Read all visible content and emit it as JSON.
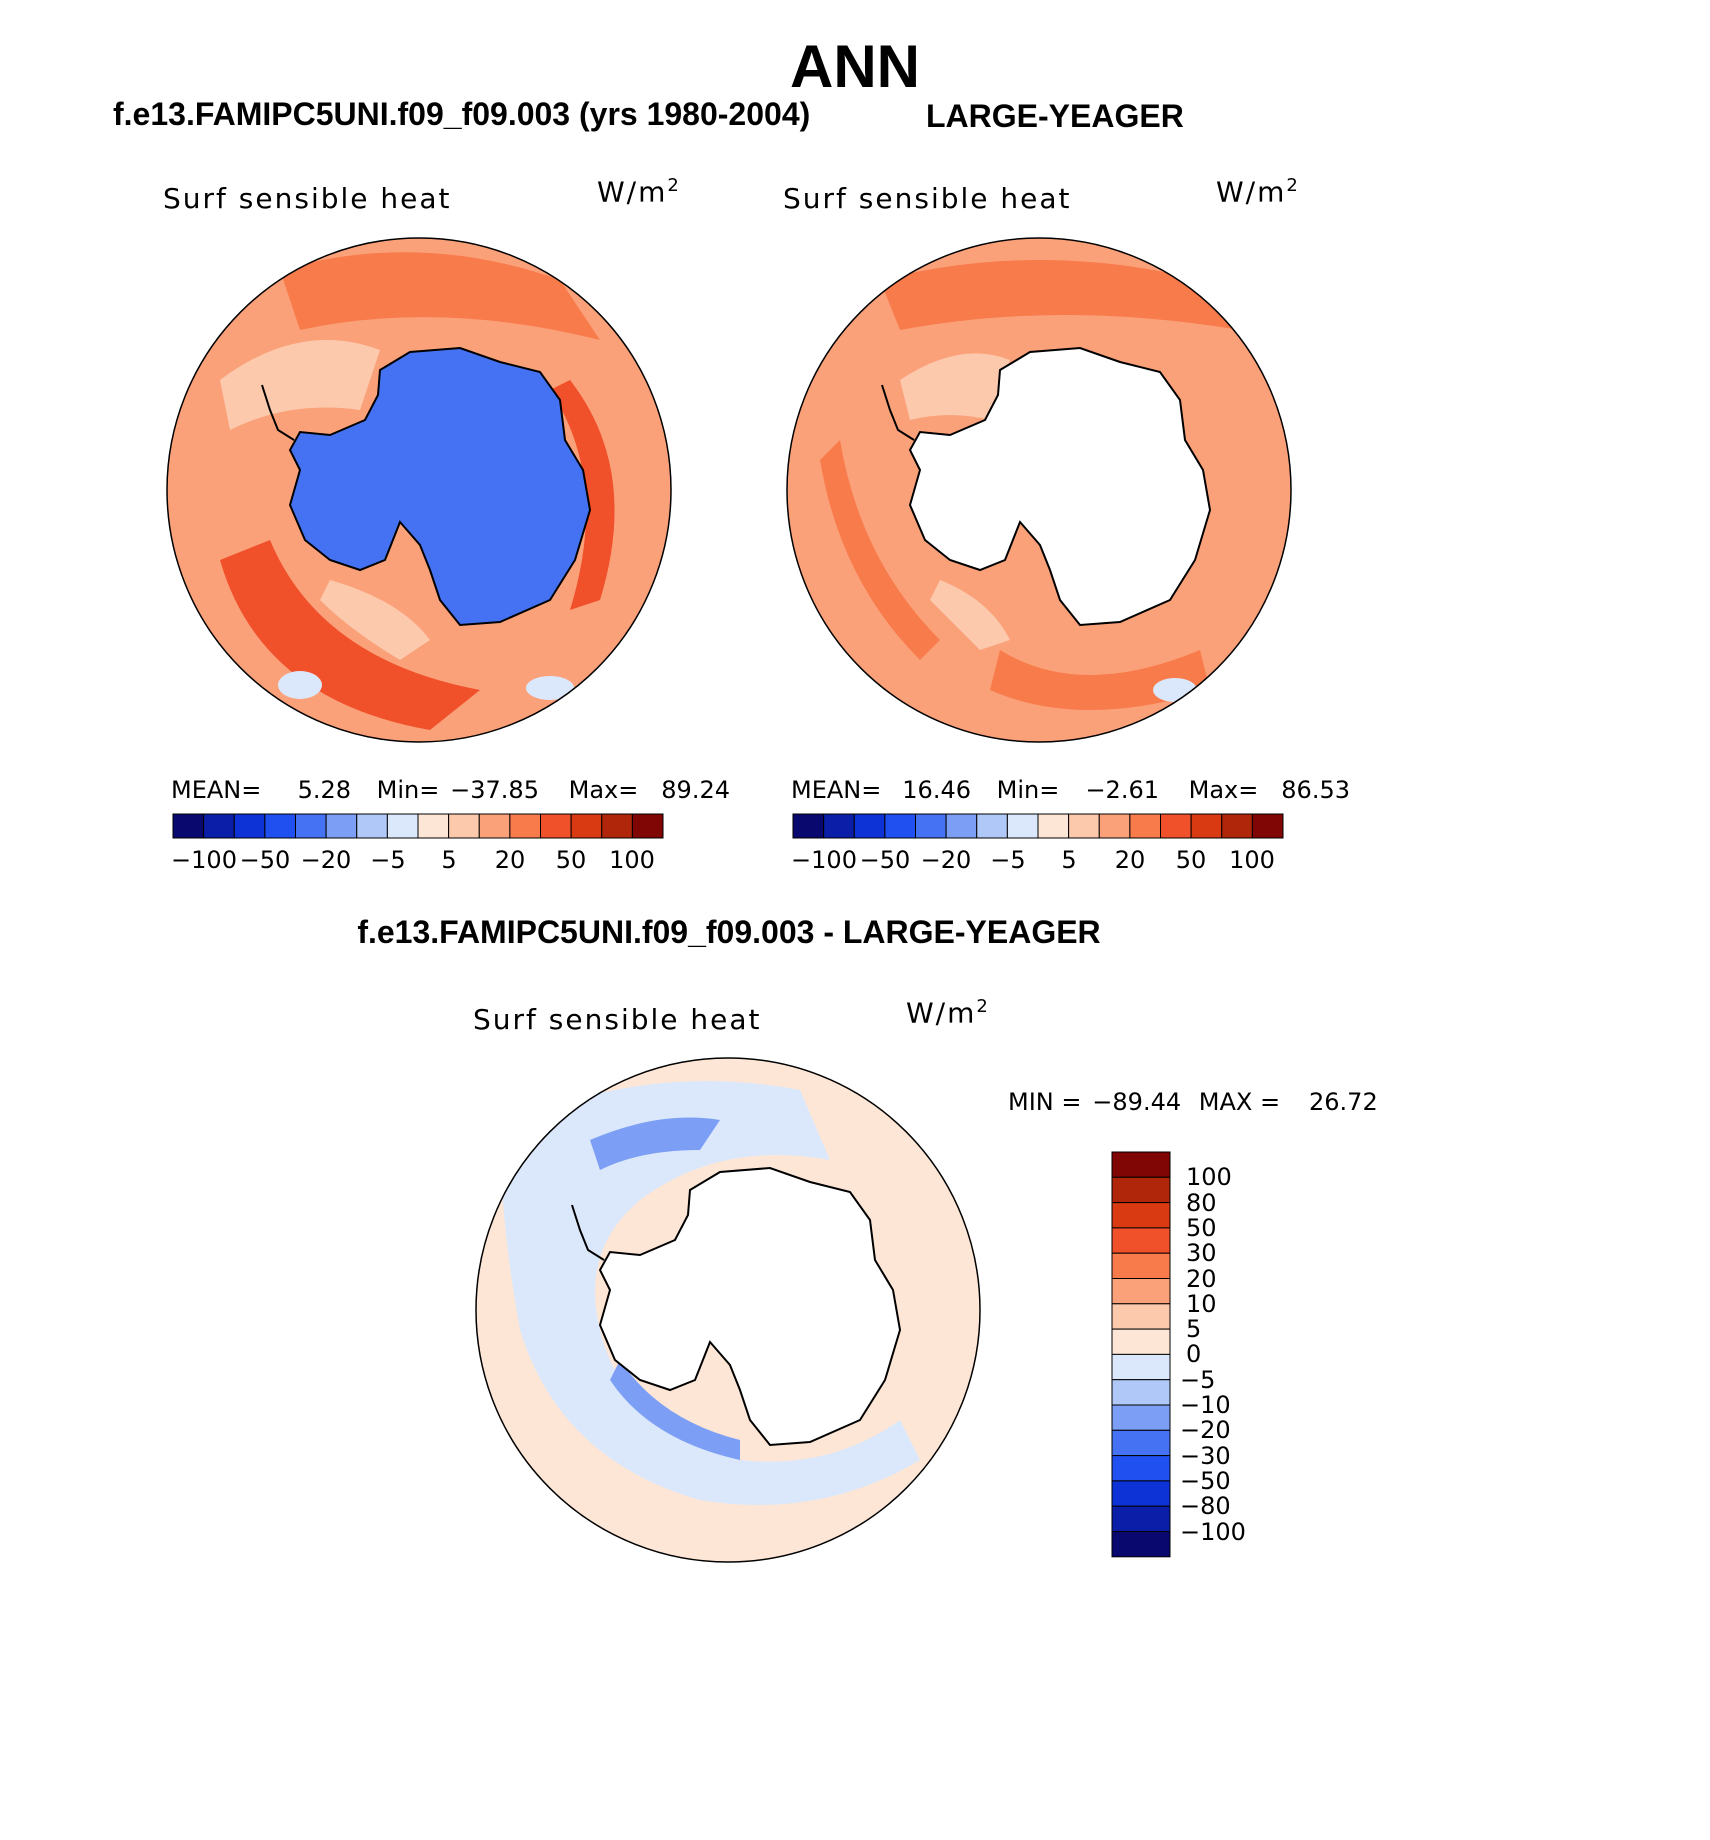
{
  "title": "ANN",
  "panels": [
    {
      "case_title": "f.e13.FAMIPC5UNI.f09_f09.003 (yrs 1980-2004)",
      "variable": "Surf sensible heat",
      "units": "W/m",
      "units_sup": "2",
      "stats": {
        "mean_label": "MEAN=",
        "mean": "5.28",
        "min_label": "Min=",
        "min": "−37.85",
        "max_label": "Max=",
        "max": "89.24"
      },
      "colorbar_labels": [
        "−100",
        "−50",
        "−20",
        "−5",
        "5",
        "20",
        "50",
        "100"
      ]
    },
    {
      "case_title": "LARGE-YEAGER",
      "variable": "Surf sensible heat",
      "units": "W/m",
      "units_sup": "2",
      "stats": {
        "mean_label": "MEAN=",
        "mean": "16.46",
        "min_label": "Min=",
        "min": "−2.61",
        "max_label": "Max=",
        "max": "86.53"
      },
      "colorbar_labels": [
        "−100",
        "−50",
        "−20",
        "−5",
        "5",
        "20",
        "50",
        "100"
      ]
    }
  ],
  "diff_panel": {
    "case_title": "f.e13.FAMIPC5UNI.f09_f09.003 - LARGE-YEAGER",
    "variable": "Surf sensible heat",
    "units": "W/m",
    "units_sup": "2",
    "stats": {
      "min_label": "MIN =",
      "min": "−89.44",
      "max_label": "MAX =",
      "max": "26.72"
    },
    "colorbar_labels": [
      "100",
      "80",
      "50",
      "30",
      "20",
      "10",
      "5",
      "0",
      "−5",
      "−10",
      "−20",
      "−30",
      "−50",
      "−80",
      "−100"
    ]
  },
  "colors": {
    "abs_scale": [
      "#08086e",
      "#0a1ea8",
      "#0d33d6",
      "#2150f0",
      "#4572f2",
      "#7c9ff5",
      "#b0c8f8",
      "#dbe8fb",
      "#fde6d6",
      "#fcc9ad",
      "#fba17a",
      "#f87b4b",
      "#f0502a",
      "#d93a12",
      "#b0260a",
      "#800505"
    ],
    "diff_scale": [
      "#800505",
      "#b0260a",
      "#d93a12",
      "#f0502a",
      "#f87b4b",
      "#fba17a",
      "#fcc9ad",
      "#fde6d6",
      "#dbe8fb",
      "#b0c8f8",
      "#7c9ff5",
      "#4572f2",
      "#2150f0",
      "#0d33d6",
      "#0a1ea8",
      "#08086e"
    ],
    "ocean_control": "#fba17a",
    "land_control": "#4572f2",
    "ocean_obs": "#fba17a",
    "ocean_diff": "#fde6d6",
    "ice_diff": "#dbe8fb",
    "land_missing": "#ffffff",
    "coast": "#000000"
  }
}
